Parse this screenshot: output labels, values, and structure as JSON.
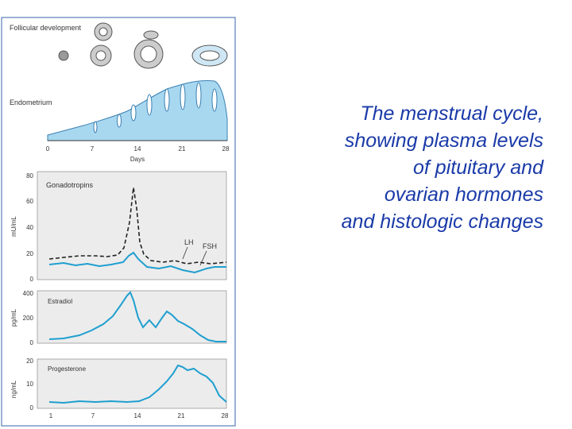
{
  "caption": {
    "lines": [
      "The menstrual cycle,",
      "showing plasma levels",
      "of pituitary and",
      "ovarian hormones",
      "and histologic changes"
    ]
  },
  "figure": {
    "follicular_label": "Follicular development",
    "endometrium_label": "Endometrium",
    "days_label": "Days",
    "days_ticks": [
      "0",
      "7",
      "14",
      "21",
      "28"
    ],
    "bottom_ticks": [
      "1",
      "7",
      "14",
      "21",
      "28"
    ],
    "colors": {
      "panel_border": "#5a7fb8",
      "curve_fsh": "#1f9fd0",
      "curve_lh": "#222222",
      "endometrium_fill": "#a8d8f0"
    },
    "panels": [
      {
        "title": "Gonadotropins",
        "unit": "mU/mL",
        "yticks": [
          "80",
          "60",
          "40",
          "20",
          "0"
        ],
        "legend_lh": "LH",
        "legend_fsh": "FSH"
      },
      {
        "title": "Estradiol",
        "unit": "pg/mL",
        "yticks": [
          "400",
          "200",
          "0"
        ]
      },
      {
        "title": "Progesterone",
        "unit": "ng/mL",
        "yticks": [
          "20",
          "10",
          "0"
        ]
      }
    ]
  }
}
